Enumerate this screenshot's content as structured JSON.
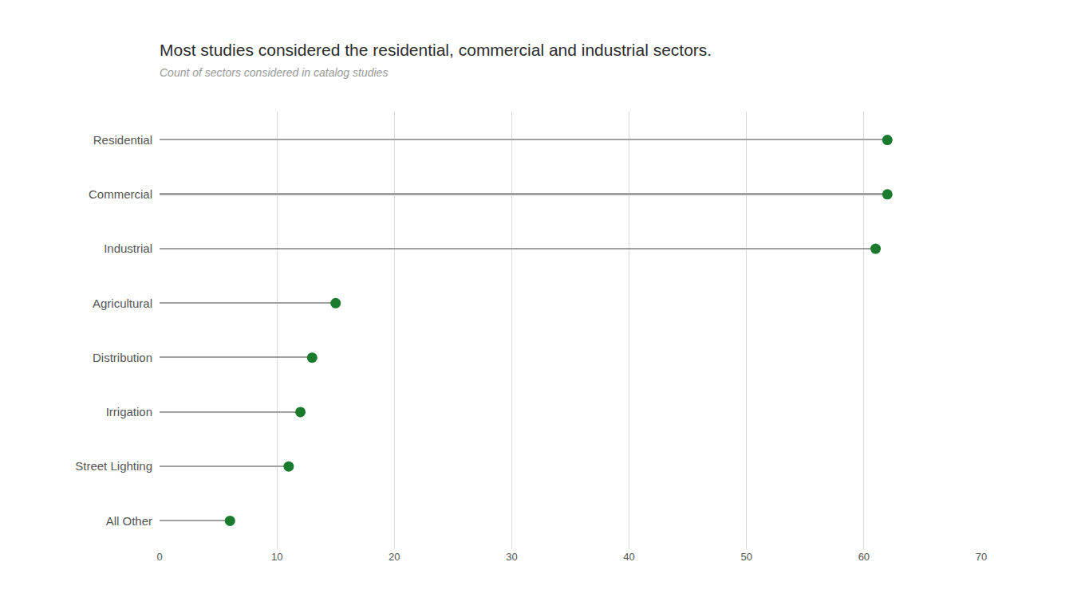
{
  "chart_data": {
    "type": "lollipop",
    "title": "Most studies considered the residential, commercial and industrial sectors.",
    "subtitle": "Count of sectors considered in catalog studies",
    "categories": [
      "Residential",
      "Commercial",
      "Industrial",
      "Agricultural",
      "Distribution",
      "Irrigation",
      "Street Lighting",
      "All Other"
    ],
    "values": [
      62,
      62,
      61,
      15,
      13,
      12,
      11,
      6
    ],
    "color": "#1a7a2e",
    "orientation": "horizontal",
    "xlim": [
      0,
      70
    ],
    "xticks": [
      0,
      10,
      20,
      30,
      40,
      50,
      60,
      70
    ],
    "grid": true
  }
}
